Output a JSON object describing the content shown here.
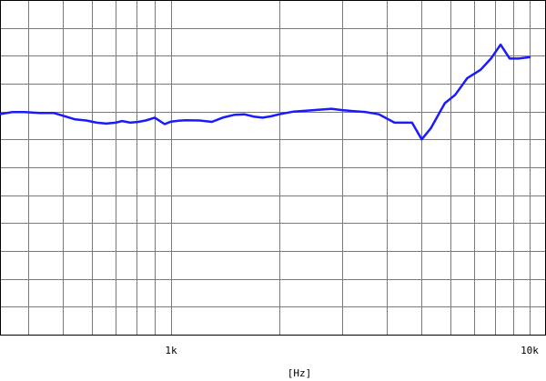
{
  "chart_data": {
    "type": "line",
    "title": "",
    "xlabel": "[Hz]",
    "ylabel": "",
    "x_scale": "log",
    "xlim": [
      300,
      10000
    ],
    "ylim": [
      0,
      12
    ],
    "x_tick_values": [
      1000,
      10000
    ],
    "x_tick_labels": [
      "1k",
      "10k"
    ],
    "grid": true,
    "legend": "none",
    "colors": {
      "series": "#1a1aff",
      "grid": "#7a7a7a",
      "background": "#ffffff"
    },
    "series": [
      {
        "color": "#1a1aff",
        "x": [
          300,
          330,
          360,
          390,
          430,
          470,
          500,
          540,
          580,
          620,
          660,
          700,
          730,
          770,
          810,
          850,
          900,
          960,
          1000,
          1050,
          1100,
          1200,
          1300,
          1400,
          1500,
          1600,
          1700,
          1800,
          1900,
          2000,
          2200,
          2500,
          2800,
          3000,
          3200,
          3500,
          3800,
          4200,
          4700,
          5000,
          5300,
          5800,
          6200,
          6700,
          7300,
          7800,
          8300,
          8800,
          9300,
          10000
        ],
        "y": [
          7.7,
          7.9,
          7.98,
          7.98,
          7.95,
          7.95,
          7.85,
          7.72,
          7.68,
          7.6,
          7.57,
          7.6,
          7.66,
          7.6,
          7.63,
          7.68,
          7.78,
          7.55,
          7.64,
          7.67,
          7.69,
          7.68,
          7.63,
          7.79,
          7.88,
          7.9,
          7.82,
          7.78,
          7.83,
          7.9,
          8.0,
          8.05,
          8.1,
          8.05,
          8.02,
          7.98,
          7.9,
          7.6,
          7.6,
          7.0,
          7.4,
          8.3,
          8.6,
          9.2,
          9.5,
          9.9,
          10.4,
          9.9,
          9.9,
          9.95
        ]
      }
    ]
  }
}
